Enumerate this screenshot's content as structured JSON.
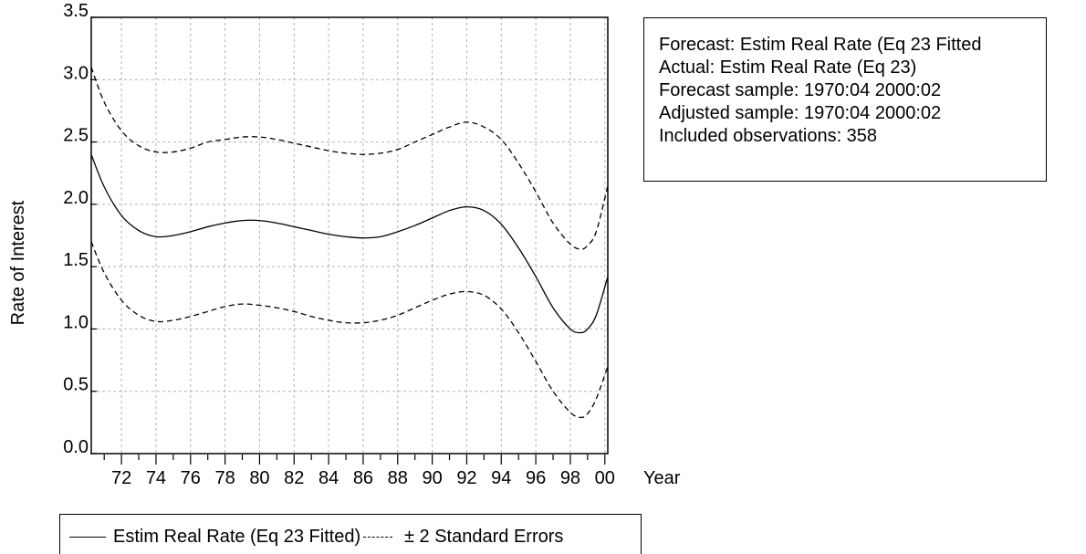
{
  "chart_data": {
    "type": "line",
    "title": "",
    "xlabel": "Year",
    "ylabel": "Rate of Interest",
    "xlim": [
      1970.25,
      2000.17
    ],
    "ylim": [
      0,
      3.5
    ],
    "x_tick_labels": [
      "72",
      "74",
      "76",
      "78",
      "80",
      "82",
      "84",
      "86",
      "88",
      "90",
      "92",
      "94",
      "96",
      "98",
      "00"
    ],
    "x_tick_values": [
      1972,
      1974,
      1976,
      1978,
      1980,
      1982,
      1984,
      1986,
      1988,
      1990,
      1992,
      1994,
      1996,
      1998,
      2000
    ],
    "y_ticks": [
      0.0,
      0.5,
      1.0,
      1.5,
      2.0,
      2.5,
      3.0,
      3.5
    ],
    "y_tick_labels": [
      "0.0",
      "0.5",
      "1.0",
      "1.5",
      "2.0",
      "2.5",
      "3.0",
      "3.5"
    ],
    "grid": true,
    "legend_position": "bottom",
    "x": [
      1970.25,
      1971,
      1972,
      1973,
      1974,
      1975,
      1976,
      1977,
      1978,
      1979,
      1980,
      1981,
      1982,
      1983,
      1984,
      1985,
      1986,
      1987,
      1988,
      1989,
      1990,
      1991,
      1992,
      1993,
      1994,
      1995,
      1996,
      1997,
      1998,
      1998.6,
      1999,
      1999.5,
      2000.17
    ],
    "series": [
      {
        "name": "Estim Real Rate (Eq 23 Fitted)",
        "style": "solid",
        "values": [
          2.4,
          2.14,
          1.91,
          1.79,
          1.74,
          1.75,
          1.78,
          1.82,
          1.85,
          1.87,
          1.87,
          1.85,
          1.82,
          1.79,
          1.76,
          1.74,
          1.73,
          1.74,
          1.78,
          1.83,
          1.89,
          1.95,
          1.98,
          1.95,
          1.84,
          1.65,
          1.42,
          1.17,
          1.0,
          0.97,
          1.0,
          1.11,
          1.42
        ]
      },
      {
        "name": "± 2 Standard Errors",
        "style": "dashed",
        "values": [
          3.1,
          2.82,
          2.59,
          2.47,
          2.42,
          2.42,
          2.45,
          2.5,
          2.52,
          2.54,
          2.54,
          2.52,
          2.49,
          2.46,
          2.43,
          2.41,
          2.4,
          2.41,
          2.44,
          2.5,
          2.56,
          2.62,
          2.66,
          2.62,
          2.52,
          2.33,
          2.1,
          1.85,
          1.68,
          1.64,
          1.67,
          1.78,
          2.15
        ]
      },
      {
        "name": "± 2 Standard Errors",
        "style": "dashed",
        "values": [
          1.7,
          1.45,
          1.23,
          1.11,
          1.06,
          1.07,
          1.1,
          1.14,
          1.18,
          1.2,
          1.19,
          1.17,
          1.14,
          1.1,
          1.07,
          1.05,
          1.05,
          1.07,
          1.11,
          1.17,
          1.23,
          1.28,
          1.3,
          1.27,
          1.16,
          0.97,
          0.74,
          0.5,
          0.33,
          0.29,
          0.32,
          0.44,
          0.7
        ]
      }
    ]
  },
  "info": {
    "lines": [
      "Forecast: Estim Real Rate (Eq 23 Fitted",
      "Actual: Estim Real Rate (Eq 23)",
      "Forecast sample: 1970:04 2000:02",
      "Adjusted sample: 1970:04 2000:02",
      "Included observations: 358"
    ]
  },
  "legend": {
    "solid_label": "Estim Real Rate (Eq 23 Fitted)",
    "dashed_label": "± 2 Standard Errors"
  }
}
